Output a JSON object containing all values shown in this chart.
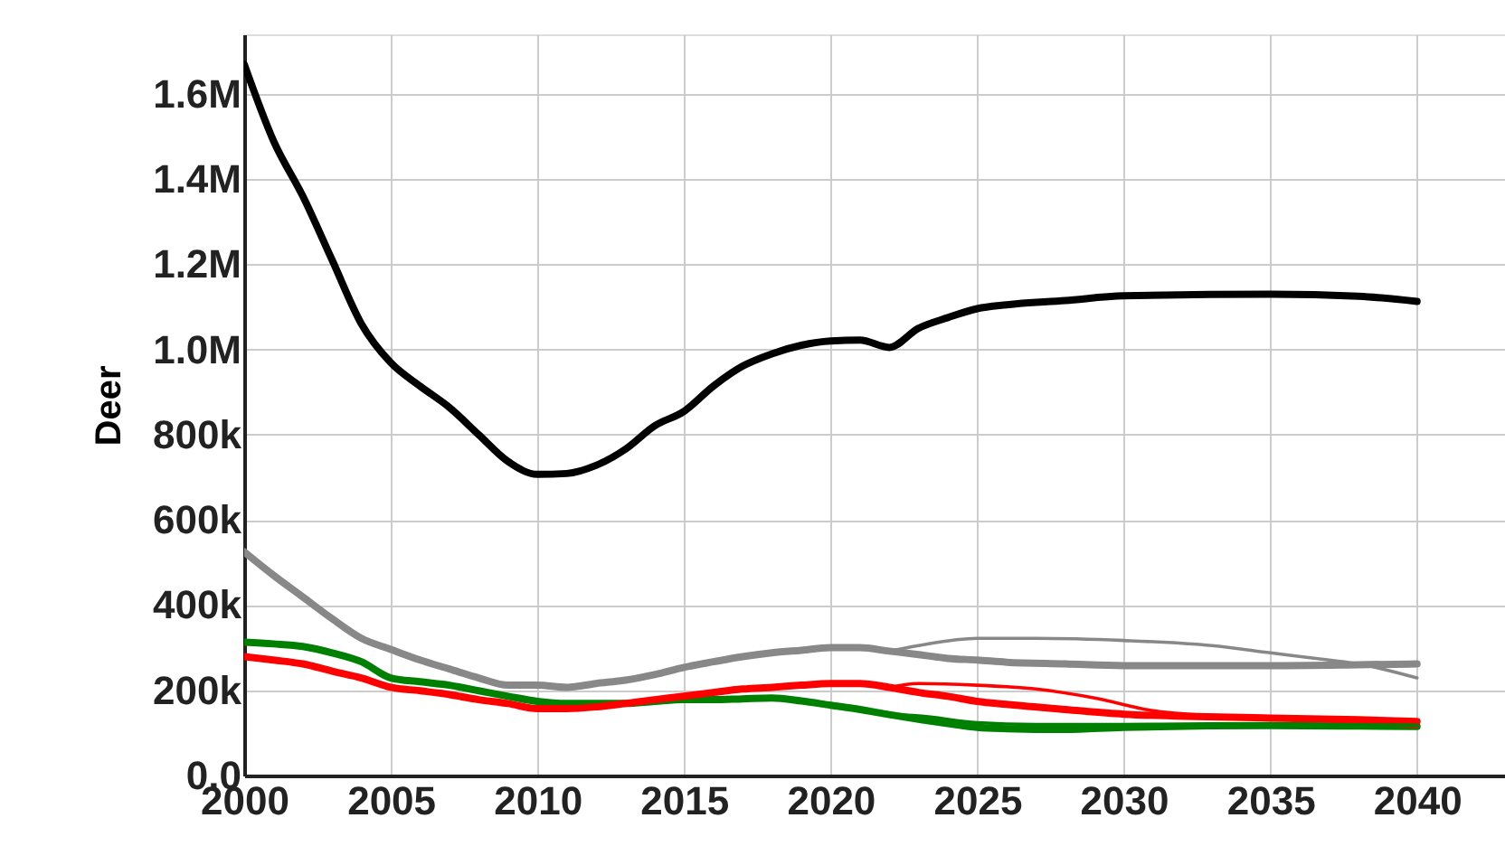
{
  "chart_data": {
    "type": "line",
    "ylabel": "Deer",
    "x": [
      2000,
      2001,
      2002,
      2003,
      2004,
      2005,
      2006,
      2007,
      2008,
      2009,
      2010,
      2011,
      2012,
      2013,
      2014,
      2015,
      2016,
      2017,
      2018,
      2019,
      2020,
      2021,
      2022,
      2023,
      2024,
      2025,
      2026,
      2028,
      2030,
      2035,
      2038,
      2040
    ],
    "series": [
      {
        "color": "#000000",
        "values": [
          1670000,
          1490000,
          1360000,
          1210000,
          1060000,
          969000,
          914000,
          864000,
          800000,
          737000,
          707000,
          709000,
          728000,
          766000,
          821000,
          855000,
          914000,
          961000,
          990000,
          1010000,
          1020000,
          1022000,
          1005000,
          1050000,
          1075000,
          1096000,
          1105000,
          1115000,
          1126000,
          1130000,
          1125000,
          1113000
        ]
      },
      {
        "color": "#888888",
        "values": [
          525000,
          470000,
          419000,
          368000,
          322000,
          296000,
          271000,
          250000,
          229000,
          212000,
          212000,
          207000,
          216000,
          224000,
          237000,
          254000,
          267000,
          279000,
          288000,
          294000,
          300000,
          300000,
          292000,
          284000,
          275000,
          271000,
          266000,
          262000,
          258000,
          258000,
          260000,
          262000
        ]
      },
      {
        "color": "#888888",
        "x": [
          2022,
          2023,
          2025,
          2027,
          2030,
          2033,
          2035,
          2037,
          2038,
          2040
        ],
        "values": [
          292000,
          305000,
          322000,
          322000,
          317000,
          305000,
          288000,
          271000,
          262000,
          229000
        ]
      },
      {
        "color": "#008000",
        "values": [
          313000,
          309000,
          303000,
          288000,
          267000,
          229000,
          220000,
          212000,
          199000,
          186000,
          174000,
          169000,
          169000,
          169000,
          174000,
          178000,
          178000,
          180000,
          182000,
          175000,
          165000,
          155000,
          143000,
          132000,
          122000,
          113000,
          110000,
          108000,
          113000,
          117000,
          116000,
          115000
        ]
      },
      {
        "color": "#008000",
        "x": [
          2022,
          2023,
          2025,
          2027,
          2030,
          2035,
          2040
        ],
        "values": [
          143000,
          140000,
          124000,
          120000,
          120000,
          121000,
          118000
        ]
      },
      {
        "color": "#ff0000",
        "values": [
          279000,
          271000,
          262000,
          245000,
          229000,
          207000,
          199000,
          190000,
          178000,
          169000,
          157000,
          157000,
          161000,
          169000,
          178000,
          186000,
          195000,
          203000,
          207000,
          212000,
          216000,
          216000,
          207000,
          195000,
          186000,
          174000,
          167000,
          155000,
          144000,
          135000,
          131000,
          127000
        ]
      },
      {
        "color": "#ff0000",
        "x": [
          2022,
          2023,
          2025,
          2027,
          2029,
          2031,
          2033,
          2035,
          2040
        ],
        "values": [
          207000,
          216000,
          212000,
          203000,
          182000,
          152000,
          140000,
          135000,
          115000
        ]
      }
    ],
    "xlim": [
      2000,
      2043
    ],
    "xticks": [
      2000,
      2005,
      2010,
      2015,
      2020,
      2025,
      2030,
      2035,
      2040
    ],
    "ylim": [
      0,
      1740000
    ],
    "yticks": [
      {
        "value": 0,
        "label": "0.0"
      },
      {
        "value": 200000,
        "label": "200k"
      },
      {
        "value": 400000,
        "label": "400k"
      },
      {
        "value": 600000,
        "label": "600k"
      },
      {
        "value": 800000,
        "label": "800k"
      },
      {
        "value": 1000000,
        "label": "1.0M"
      },
      {
        "value": 1200000,
        "label": "1.2M"
      },
      {
        "value": 1400000,
        "label": "1.4M"
      },
      {
        "value": 1600000,
        "label": "1.6M"
      }
    ],
    "grid": true,
    "marker": "none",
    "line_style": "solid"
  }
}
